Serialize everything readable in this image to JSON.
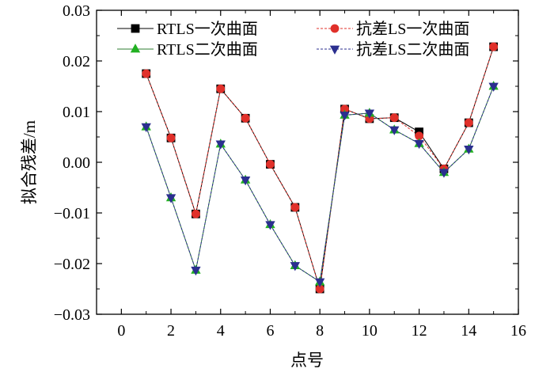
{
  "chart_data": {
    "type": "line",
    "title": "",
    "xlabel": "点号",
    "ylabel": "拟合残差/m",
    "xlim": [
      -1,
      16
    ],
    "ylim": [
      -0.03,
      0.03
    ],
    "xticks": [
      0,
      2,
      4,
      6,
      8,
      10,
      12,
      14,
      16
    ],
    "yticks": [
      -0.03,
      -0.02,
      -0.01,
      0.0,
      0.01,
      0.02,
      0.03
    ],
    "ytick_labels": [
      "−0.03",
      "−0.02",
      "−0.01",
      "0.00",
      "0.01",
      "0.02",
      "0.03"
    ],
    "x": [
      1,
      2,
      3,
      4,
      5,
      6,
      7,
      8,
      9,
      10,
      11,
      12,
      13,
      14,
      15
    ],
    "legend_position": "top",
    "series": [
      {
        "name": "RTLS一次曲面",
        "marker": "square",
        "color": "#000000",
        "marker_color": "#000000",
        "dash": "solid",
        "values": [
          0.0175,
          0.0048,
          -0.0102,
          0.0145,
          0.0087,
          -0.0004,
          -0.0089,
          -0.025,
          0.0105,
          0.0086,
          0.0088,
          0.006,
          -0.0013,
          0.0078,
          0.0228
        ]
      },
      {
        "name": "抗差LS一次曲面",
        "marker": "circle",
        "color": "#e0302a",
        "marker_color": "#e0302a",
        "dash": "dashed",
        "values": [
          0.0175,
          0.0048,
          -0.0102,
          0.0145,
          0.0087,
          -0.0004,
          -0.0089,
          -0.025,
          0.0105,
          0.0086,
          0.0088,
          0.0052,
          -0.0013,
          0.0078,
          0.0228
        ]
      },
      {
        "name": "RTLS二次曲面",
        "marker": "triangle-up",
        "color": "#2e7d32",
        "marker_color": "#22b022",
        "dash": "solid",
        "values": [
          0.007,
          -0.007,
          -0.0213,
          0.0036,
          -0.0035,
          -0.0123,
          -0.0204,
          -0.0236,
          0.0093,
          0.0097,
          0.0064,
          0.0037,
          -0.002,
          0.0026,
          0.015
        ]
      },
      {
        "name": "抗差LS二次曲面",
        "marker": "triangle-down",
        "color": "#2b2f8f",
        "marker_color": "#2b2f8f",
        "dash": "dashed",
        "values": [
          0.007,
          -0.007,
          -0.0213,
          0.0036,
          -0.0035,
          -0.0123,
          -0.0204,
          -0.0236,
          0.0093,
          0.0097,
          0.0064,
          0.0037,
          -0.002,
          0.0026,
          0.015
        ]
      }
    ]
  }
}
